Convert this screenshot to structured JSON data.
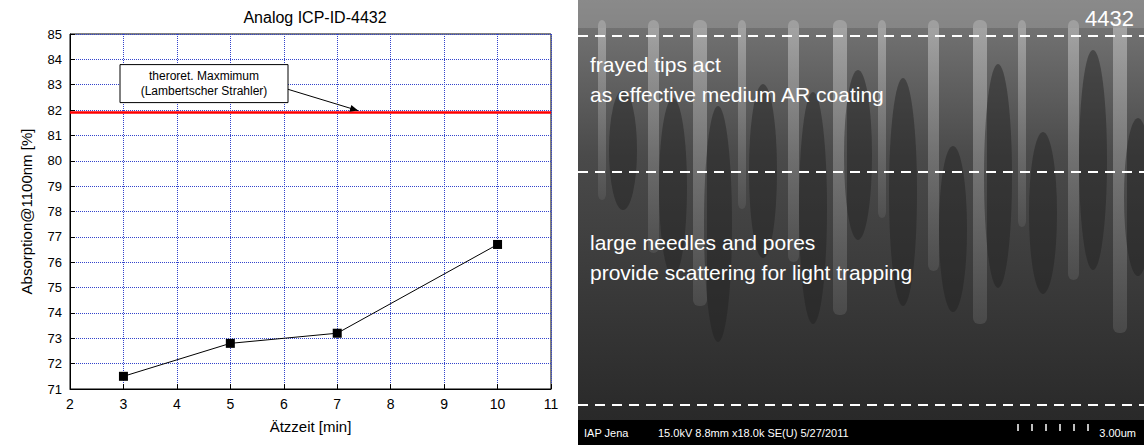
{
  "chart_data": {
    "type": "line",
    "title": "Analog ICP-ID-4432",
    "x_label": "Ätzzeit [min]",
    "y_label": "Absorption@1100nm [%]",
    "x": [
      3,
      5,
      7,
      10
    ],
    "values": [
      71.5,
      72.8,
      73.2,
      76.7
    ],
    "color": "#000000",
    "marker": "square",
    "xlim": [
      2,
      11
    ],
    "xticks": [
      2,
      3,
      4,
      5,
      6,
      7,
      8,
      9,
      10,
      11
    ],
    "ylim": [
      71,
      85
    ],
    "yticks": [
      71,
      72,
      73,
      74,
      75,
      76,
      77,
      78,
      79,
      80,
      81,
      82,
      83,
      84,
      85
    ],
    "grid": true,
    "reference_line": {
      "value": 81.9,
      "color": "#ff0000",
      "label": [
        "theroret. Maxmimum",
        "(Lambertscher Strahler)"
      ]
    }
  },
  "image_panel": {
    "id_label": "4432",
    "regions": [
      [
        "frayed tips act",
        "as effective medium AR coating"
      ],
      [
        "large needles and pores",
        "provide scattering for light trapping"
      ]
    ],
    "footer": [
      "IAP Jena",
      "15.0kV 8.8mm x18.0k SE(U) 5/27/2011",
      "3.00um"
    ]
  }
}
